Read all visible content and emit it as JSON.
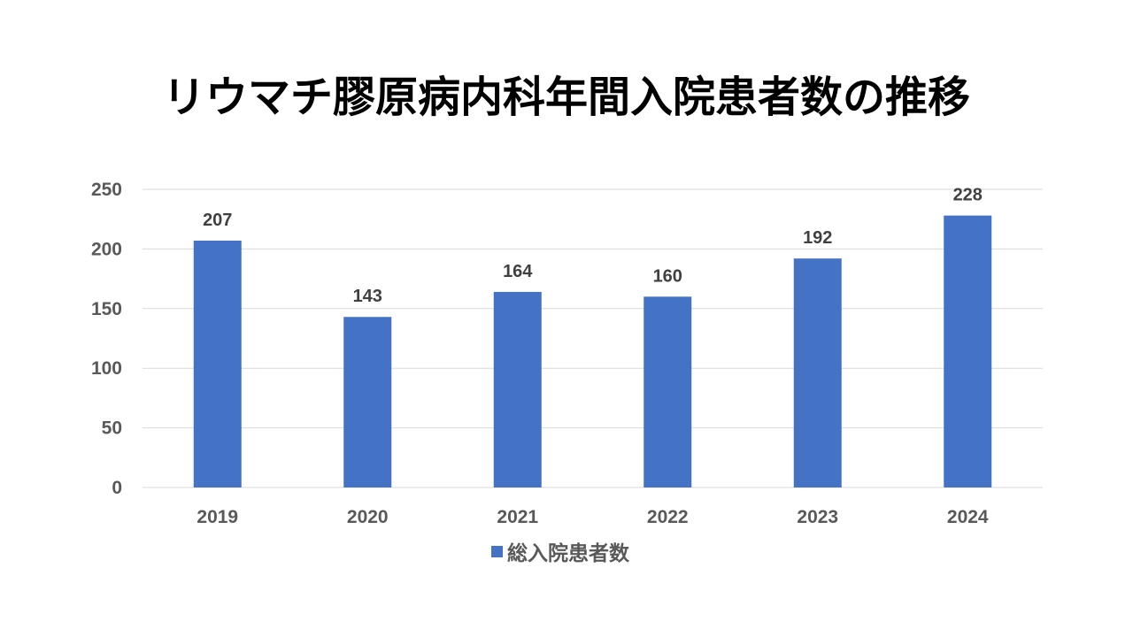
{
  "chart_data": {
    "type": "bar",
    "title": "リウマチ膠原病内科年間入院患者数の推移",
    "categories": [
      "2019",
      "2020",
      "2021",
      "2022",
      "2023",
      "2024"
    ],
    "series": [
      {
        "name": "総入院患者数",
        "values": [
          207,
          143,
          164,
          160,
          192,
          228
        ],
        "color": "#4472c4"
      }
    ],
    "data_labels": [
      "207",
      "143",
      "164",
      "160",
      "192",
      "228"
    ],
    "y_ticks": [
      "0",
      "50",
      "100",
      "150",
      "200",
      "250"
    ],
    "ylim": [
      0,
      250
    ],
    "grid": true,
    "legend_position": "bottom"
  }
}
